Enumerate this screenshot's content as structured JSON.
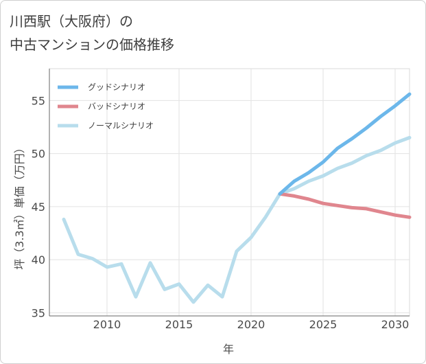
{
  "chart_data": {
    "type": "line",
    "title": "川西駅（大阪府）の\n中古マンションの価格推移",
    "xlabel": "年",
    "ylabel": "坪（3.3㎡）単価（万円）",
    "xlim": [
      2006,
      2031
    ],
    "ylim": [
      34.7,
      58
    ],
    "xticks": [
      2010,
      2015,
      2020,
      2025,
      2030
    ],
    "yticks": [
      35,
      40,
      45,
      50,
      55
    ],
    "grid": true,
    "legend_position": "top-left",
    "series": [
      {
        "name": "グッドシナリオ",
        "color": "#6cb7ea",
        "x": [
          2022,
          2023,
          2024,
          2025,
          2026,
          2027,
          2028,
          2029,
          2030,
          2031
        ],
        "values": [
          46.2,
          47.4,
          48.2,
          49.2,
          50.5,
          51.4,
          52.4,
          53.5,
          54.5,
          55.6
        ]
      },
      {
        "name": "バッドシナリオ",
        "color": "#e0868e",
        "x": [
          2022,
          2023,
          2024,
          2025,
          2026,
          2027,
          2028,
          2029,
          2030,
          2031
        ],
        "values": [
          46.2,
          46.0,
          45.7,
          45.3,
          45.1,
          44.9,
          44.8,
          44.5,
          44.2,
          44.0
        ]
      },
      {
        "name": "ノーマルシナリオ",
        "color": "#b8ddec",
        "x": [
          2007,
          2008,
          2009,
          2010,
          2011,
          2012,
          2013,
          2014,
          2015,
          2016,
          2017,
          2018,
          2019,
          2020,
          2021,
          2022,
          2023,
          2024,
          2025,
          2026,
          2027,
          2028,
          2029,
          2030,
          2031
        ],
        "values": [
          43.8,
          40.5,
          40.1,
          39.3,
          39.6,
          36.5,
          39.7,
          37.2,
          37.7,
          36.0,
          37.6,
          36.5,
          40.8,
          42.1,
          44.0,
          46.2,
          46.7,
          47.4,
          47.9,
          48.6,
          49.1,
          49.8,
          50.3,
          51.0,
          51.5
        ]
      }
    ]
  }
}
